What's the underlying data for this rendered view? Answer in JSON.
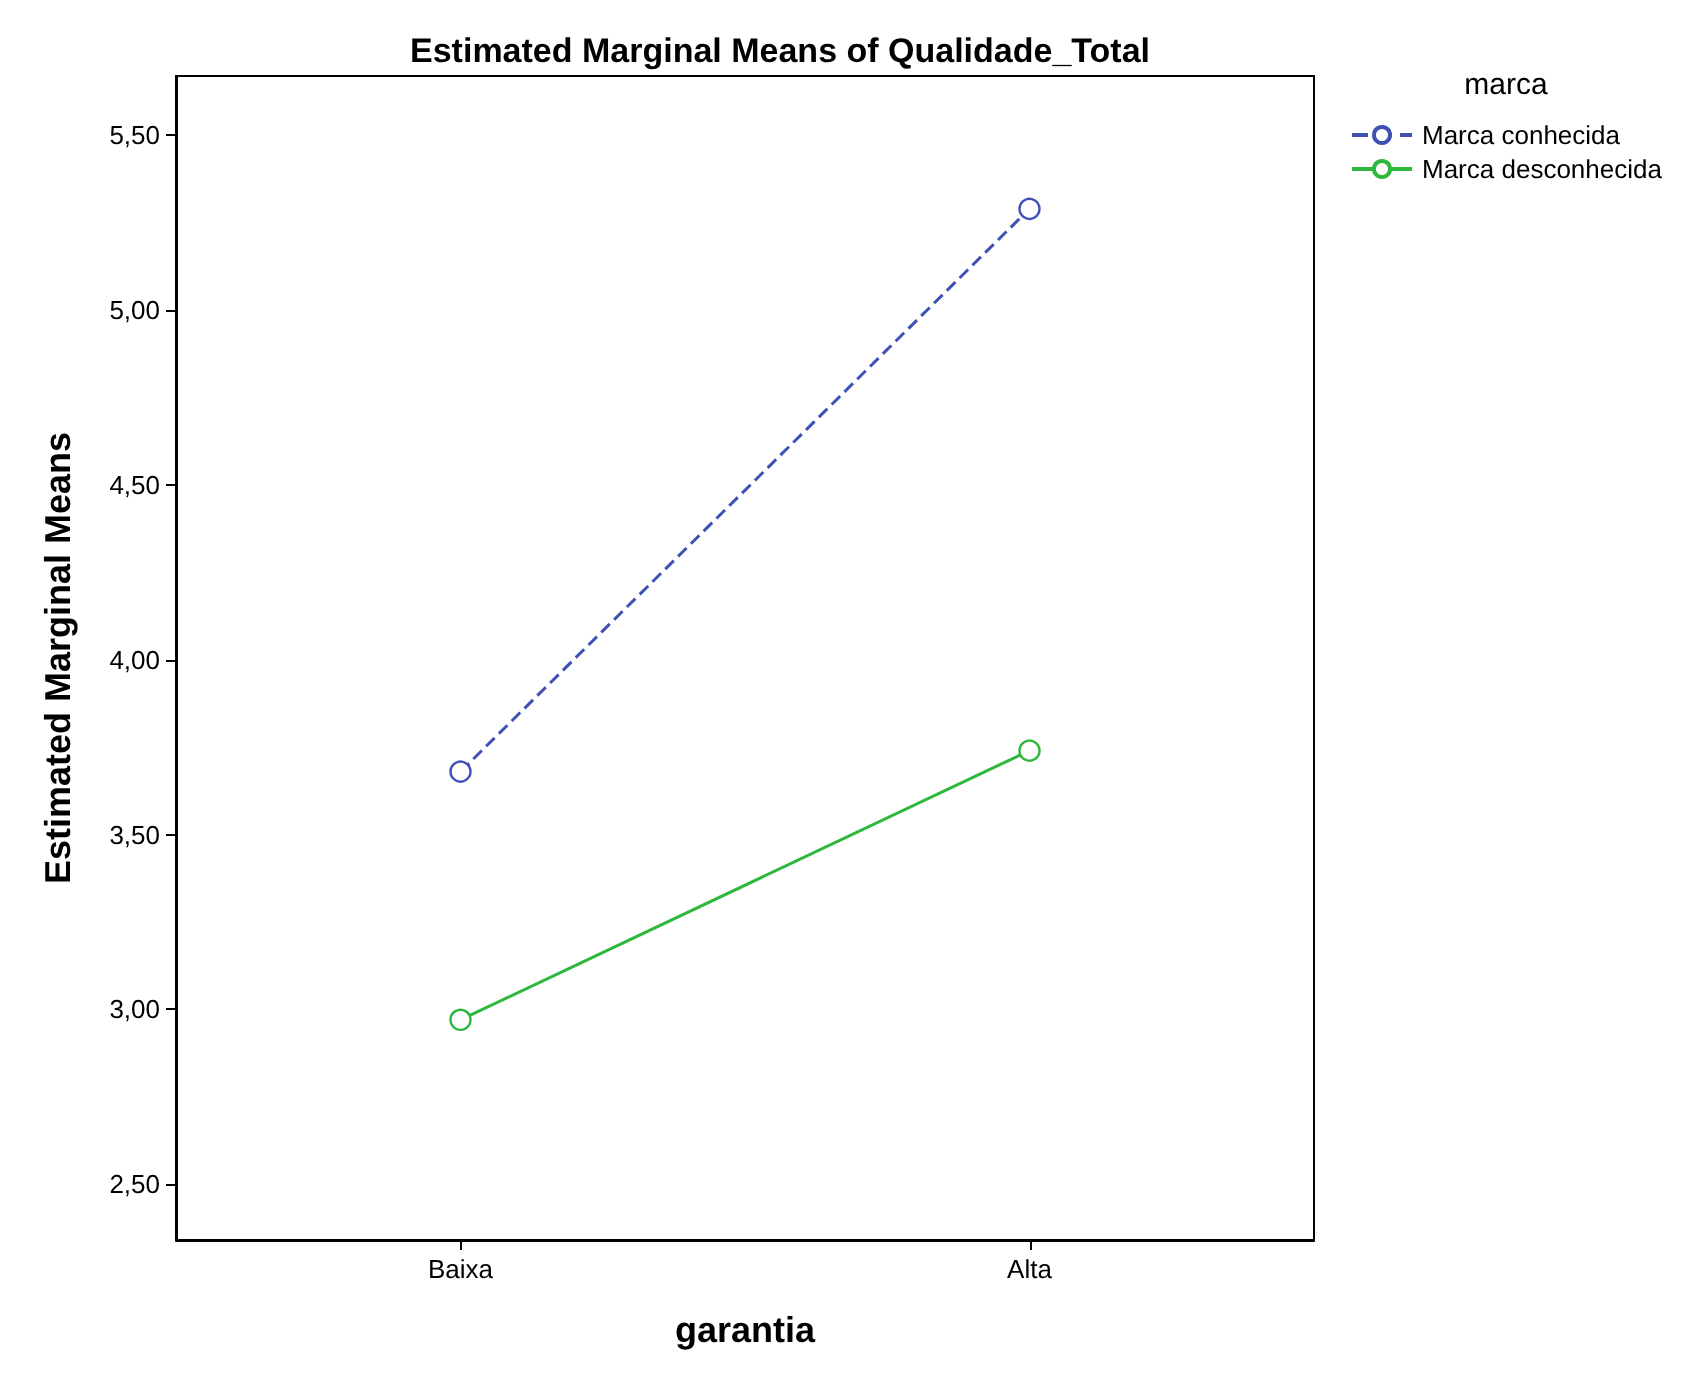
{
  "chart_data": {
    "type": "line",
    "title": "Estimated Marginal Means of Qualidade_Total",
    "xlabel": "garantia",
    "ylabel": "Estimated Marginal Means",
    "legend_title": "marca",
    "categories": [
      "Baixa",
      "Alta"
    ],
    "series": [
      {
        "name": "Marca conhecida",
        "color": "#3f51b5",
        "values": [
          3.68,
          5.29
        ],
        "line_style": "dashed"
      },
      {
        "name": "Marca desconhecida",
        "color": "#2db83d",
        "values": [
          2.97,
          3.74
        ],
        "line_style": "solid"
      }
    ],
    "ylim": [
      2.34,
      5.67
    ],
    "yticks": [
      {
        "value": 2.5,
        "label": "2,50"
      },
      {
        "value": 3,
        "label": "3,00"
      },
      {
        "value": 3.5,
        "label": "3,50"
      },
      {
        "value": 4,
        "label": "4,00"
      },
      {
        "value": 4.5,
        "label": "4,50"
      },
      {
        "value": 5,
        "label": "5,00"
      },
      {
        "value": 5.5,
        "label": "5,50"
      }
    ],
    "marker": "circle",
    "grid": false,
    "legend": "top right"
  }
}
